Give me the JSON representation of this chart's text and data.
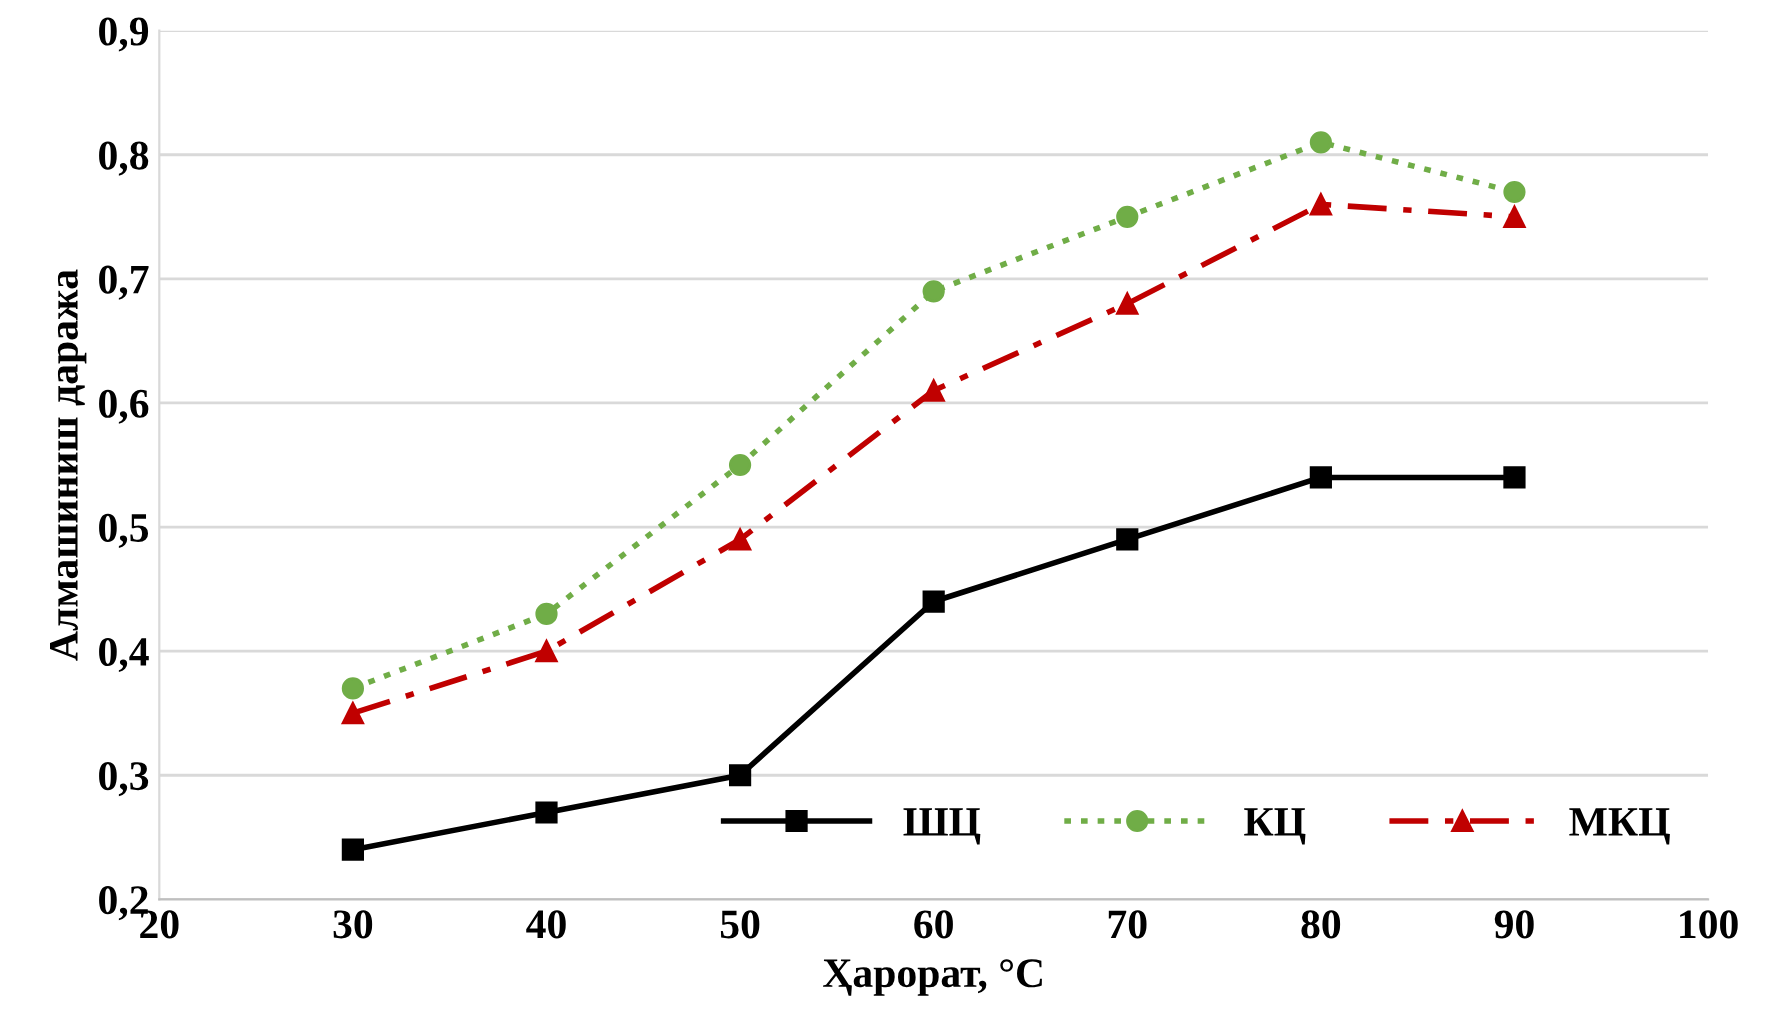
{
  "chart_data": {
    "type": "line",
    "xlabel": "Ҳарорат, °C",
    "ylabel": "Алмашиниш даража",
    "x": [
      30,
      40,
      50,
      60,
      70,
      80,
      90
    ],
    "series": [
      {
        "name": "ШЦ",
        "color": "#000000",
        "marker": "square",
        "line_style": "solid",
        "values": [
          0.24,
          0.27,
          0.3,
          0.44,
          0.49,
          0.54,
          0.54
        ]
      },
      {
        "name": "КЦ",
        "color": "#70ad47",
        "marker": "circle",
        "line_style": "dotted",
        "values": [
          0.37,
          0.43,
          0.55,
          0.69,
          0.75,
          0.81,
          0.77
        ]
      },
      {
        "name": "МКЦ",
        "color": "#c00000",
        "marker": "triangle",
        "line_style": "dashdot",
        "values": [
          0.35,
          0.4,
          0.49,
          0.61,
          0.68,
          0.76,
          0.75
        ]
      }
    ],
    "xlim": [
      20,
      100
    ],
    "xticks": [
      20,
      30,
      40,
      50,
      60,
      70,
      80,
      90,
      100
    ],
    "ylim": [
      0.2,
      0.9
    ],
    "yticks": [
      {
        "value": 0.2,
        "label": "0,2"
      },
      {
        "value": 0.3,
        "label": "0,3"
      },
      {
        "value": 0.4,
        "label": "0,4"
      },
      {
        "value": 0.5,
        "label": "0,5"
      },
      {
        "value": 0.6,
        "label": "0,6"
      },
      {
        "value": 0.7,
        "label": "0,7"
      },
      {
        "value": 0.8,
        "label": "0,8"
      },
      {
        "value": 0.9,
        "label": "0,9"
      }
    ],
    "grid": "y",
    "legend": "bottom right"
  }
}
